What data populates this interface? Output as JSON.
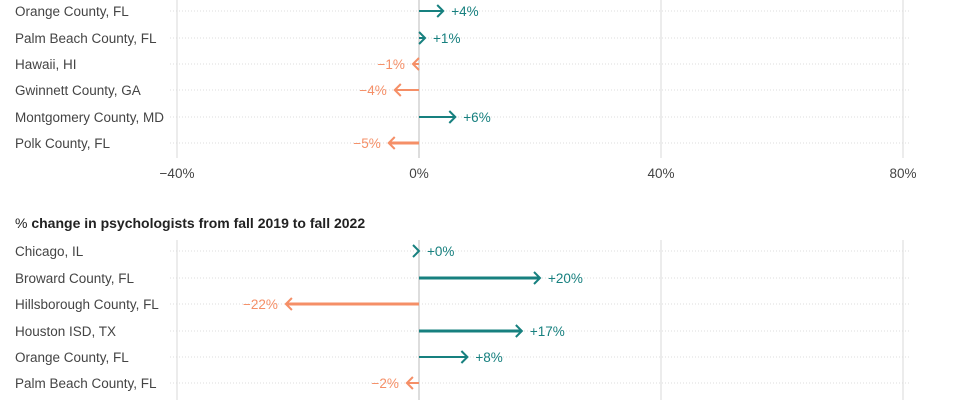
{
  "chart_data": [
    {
      "type": "bar",
      "title": "",
      "title_prefix": "",
      "categories": [
        "Orange County, FL",
        "Palm Beach County, FL",
        "Hawaii, HI",
        "Gwinnett County, GA",
        "Montgomery County, MD",
        "Polk County, FL"
      ],
      "values": [
        4,
        1,
        -1,
        -4,
        6,
        -5
      ],
      "labels": [
        "+4%",
        "+1%",
        "−1%",
        "−4%",
        "+6%",
        "−5%"
      ],
      "xlim": [
        -40,
        80
      ],
      "xticks": [
        -40,
        0,
        40,
        80
      ],
      "xtick_labels": [
        "−40%",
        "0%",
        "40%",
        "80%"
      ],
      "grid": true
    },
    {
      "type": "bar",
      "title_prefix": "%",
      "title": "change in psychologists from fall 2019 to fall 2022",
      "categories": [
        "Chicago, IL",
        "Broward County, FL",
        "Hillsborough County, FL",
        "Houston ISD, TX",
        "Orange County, FL",
        "Palm Beach County, FL"
      ],
      "values": [
        0,
        20,
        -22,
        17,
        8,
        -2
      ],
      "labels": [
        "+0%",
        "+20%",
        "−22%",
        "+17%",
        "+8%",
        "−2%"
      ],
      "xlim": [
        -40,
        80
      ],
      "xticks": [
        -40,
        0,
        40,
        80
      ],
      "grid": true
    }
  ],
  "colors": {
    "positive": "#17807f",
    "negative": "#f58f67",
    "grid": "#d8d8d8"
  }
}
